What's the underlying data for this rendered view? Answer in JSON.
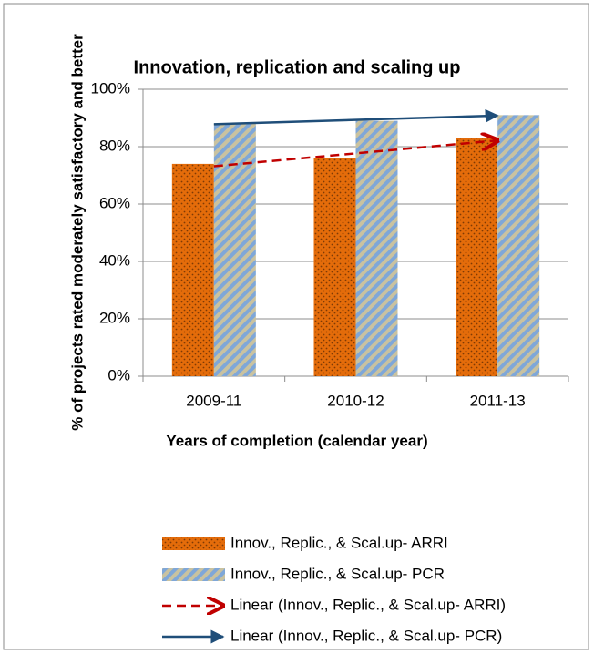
{
  "chart_data": {
    "type": "bar",
    "title": "Innovation, replication and scaling up",
    "x_label": "Years of completion (calendar year)",
    "y_label": "% of projects rated moderately satisfactory and better",
    "categories": [
      "2009-11",
      "2010-12",
      "2011-13"
    ],
    "series": [
      {
        "name": "Innov., Replic., & Scal.up- ARRI",
        "color": "#e46c0a",
        "values": [
          74,
          76,
          83
        ]
      },
      {
        "name": "Innov., Replic., & Scal.up- PCR",
        "color": "#8db3e2",
        "values": [
          88,
          89,
          91
        ]
      }
    ],
    "trendlines": [
      {
        "name": "Linear (Innov., Replic., & Scal.up- ARRI)",
        "color": "#c00000",
        "dashed": true,
        "of": 0
      },
      {
        "name": "Linear (Innov., Replic., & Scal.up- PCR)",
        "color": "#1f4e79",
        "dashed": false,
        "of": 1
      }
    ],
    "ylim": [
      0,
      100
    ],
    "yticks": [
      {
        "value": 0,
        "label": "0%"
      },
      {
        "value": 20,
        "label": "20%"
      },
      {
        "value": 40,
        "label": "40%"
      },
      {
        "value": 60,
        "label": "60%"
      },
      {
        "value": 80,
        "label": "80%"
      },
      {
        "value": 100,
        "label": "100%"
      }
    ],
    "grid": true,
    "legend": "bottom"
  }
}
